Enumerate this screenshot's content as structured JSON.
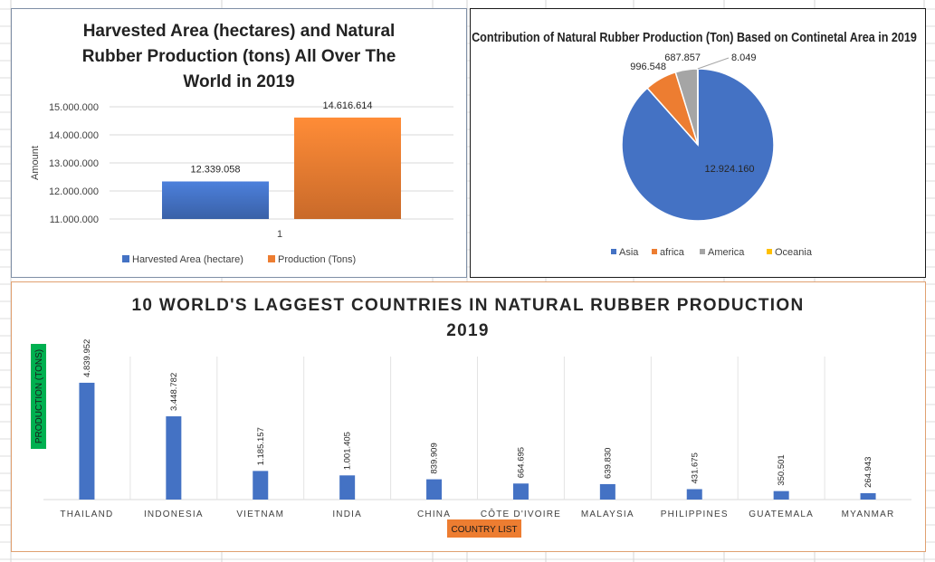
{
  "charts": [
    {
      "type": "bar",
      "title_lines": [
        "Harvested Area (hectares) and Natural",
        "Rubber  Production (tons) All Over The",
        "World in 2019"
      ],
      "ylabel": "Amount",
      "xlabel": "",
      "categories": [
        "1"
      ],
      "series": [
        {
          "name": "Harvested Area (hectare)",
          "values": [
            12339058
          ],
          "label": "12.339.058",
          "color": "#4472c4"
        },
        {
          "name": "Production (Tons)",
          "values": [
            14616614
          ],
          "label": "14.616.614",
          "color": "#ed7d31"
        }
      ],
      "ylim": [
        11000000,
        15000000
      ],
      "yticks": [
        {
          "value": 11000000,
          "label": "11.000.000"
        },
        {
          "value": 12000000,
          "label": "12.000.000"
        },
        {
          "value": 13000000,
          "label": "13.000.000"
        },
        {
          "value": 14000000,
          "label": "14.000.000"
        },
        {
          "value": 15000000,
          "label": "15.000.000"
        }
      ],
      "grid": true,
      "legend": "bottom"
    },
    {
      "type": "pie",
      "title": "Contribution of Natural Rubber Production (Ton) Based on Continetal Area  in 2019",
      "slices": [
        {
          "name": "Asia",
          "value": 12924160,
          "label": "12.924.160",
          "color": "#4472c4"
        },
        {
          "name": "africa",
          "value": 996548,
          "label": "996.548",
          "color": "#ed7d31"
        },
        {
          "name": "America",
          "value": 687857,
          "label": "687.857",
          "color": "#a5a5a5"
        },
        {
          "name": "Oceania",
          "value": 8049,
          "label": "8.049",
          "color": "#ffc000"
        }
      ],
      "legend": "bottom"
    },
    {
      "type": "bar",
      "title_lines": [
        "10 WORLD'S LAGGEST COUNTRIES IN NATURAL RUBBER PRODUCTION",
        "2019"
      ],
      "ylabel": "PRODUCTION (TONS)",
      "xlabel": "COUNTRY LIST",
      "categories": [
        "THAILAND",
        "INDONESIA",
        "VIETNAM",
        "INDIA",
        "CHINA",
        "CÔTE D'IVOIRE",
        "MALAYSIA",
        "PHILIPPINES",
        "GUATEMALA",
        "MYANMAR"
      ],
      "values": [
        4839952,
        3448782,
        1185157,
        1001405,
        839909,
        664695,
        639830,
        431675,
        350501,
        264943
      ],
      "labels": [
        "4.839.952",
        "3.448.782",
        "1.185.157",
        "1.001.405",
        "839.909",
        "664.695",
        "639.830",
        "431.675",
        "350.501",
        "264.943"
      ],
      "color": "#4472c4",
      "ylim": [
        0,
        6000000
      ],
      "grid": true,
      "legend": "none"
    }
  ],
  "colors": {
    "accent_green": "#00b050",
    "accent_orange": "#ed7d31"
  }
}
